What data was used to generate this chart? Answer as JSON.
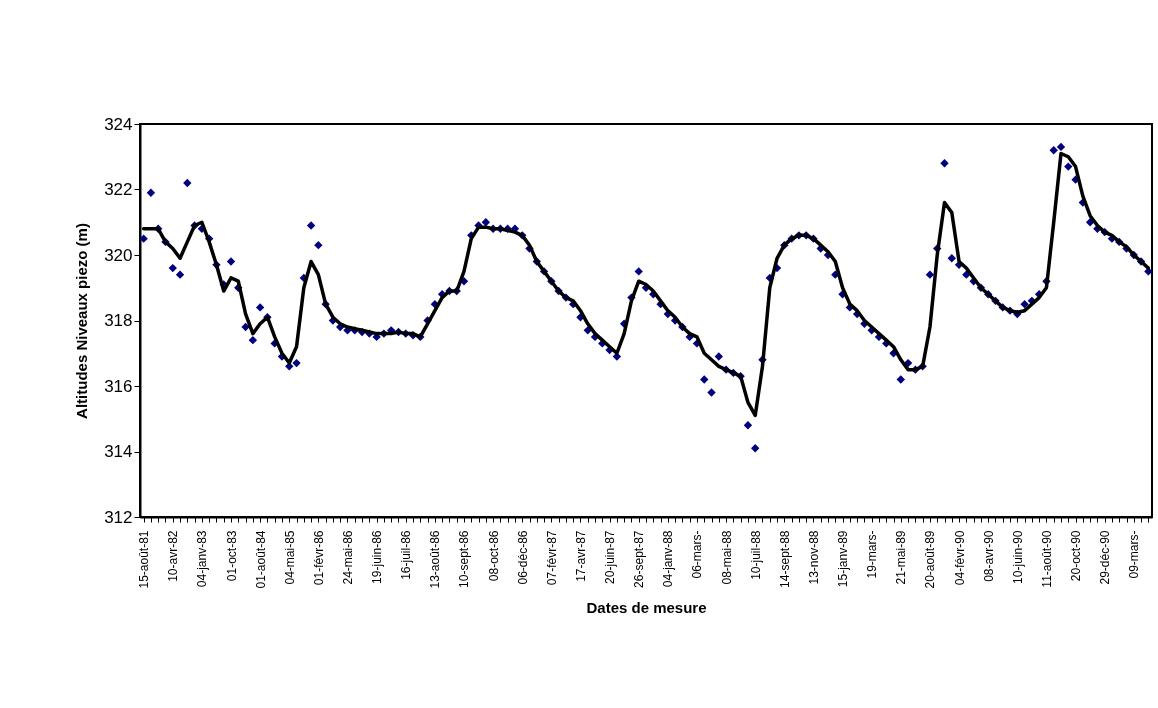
{
  "chart_data": {
    "type": "line",
    "xlabel": "Dates de mesure",
    "ylabel": "Altitudes Niveaux piezo (m)",
    "ylim": [
      312,
      324
    ],
    "yticks": [
      312,
      314,
      316,
      318,
      320,
      322,
      324
    ],
    "categories": [
      "15-août-81",
      null,
      null,
      null,
      "10-avr-82",
      null,
      null,
      null,
      "04-janv-83",
      null,
      null,
      null,
      "01-oct-83",
      null,
      null,
      null,
      "01-août-84",
      null,
      null,
      null,
      "04-mai-85",
      null,
      null,
      null,
      "01-févr-86",
      null,
      null,
      null,
      "24-mai-86",
      null,
      null,
      null,
      "19-juin-86",
      null,
      null,
      null,
      "16-juil-86",
      null,
      null,
      null,
      "13-août-86",
      null,
      null,
      null,
      "10-sept-86",
      null,
      null,
      null,
      "08-oct-86",
      null,
      null,
      null,
      "06-déc-86",
      null,
      null,
      null,
      "07-févr-87",
      null,
      null,
      null,
      "17-avr-87",
      null,
      null,
      null,
      "20-juin-87",
      null,
      null,
      null,
      "26-sept-87",
      null,
      null,
      null,
      "04-janv-88",
      null,
      null,
      null,
      "06-mars-",
      null,
      null,
      null,
      "08-mai-88",
      null,
      null,
      null,
      "10-juil-88",
      null,
      null,
      null,
      "14-sept-88",
      null,
      null,
      null,
      "13-nov-88",
      null,
      null,
      null,
      "15-janv-89",
      null,
      null,
      null,
      "19-mars-",
      null,
      null,
      null,
      "21-mai-89",
      null,
      null,
      null,
      "20-août-89",
      null,
      null,
      null,
      "04-févr-90",
      null,
      null,
      null,
      "08-avr-90",
      null,
      null,
      null,
      "10-juin-90",
      null,
      null,
      null,
      "11-août-90",
      null,
      null,
      null,
      "20-oct-90",
      null,
      null,
      null,
      "29-déc-90",
      null,
      null,
      null,
      "09-mars-",
      null,
      null
    ],
    "series": [
      {
        "type": "scatter",
        "marker": "diamond",
        "color": "#000080",
        "values": [
          320.5,
          321.9,
          320.8,
          320.4,
          319.6,
          319.4,
          322.2,
          320.9,
          320.8,
          320.5,
          319.7,
          319.1,
          319.8,
          319.0,
          317.8,
          317.4,
          318.4,
          318.1,
          317.3,
          316.9,
          316.6,
          316.7,
          319.3,
          320.9,
          320.3,
          318.5,
          318.0,
          317.8,
          317.7,
          317.7,
          317.65,
          317.6,
          317.5,
          317.6,
          317.7,
          317.65,
          317.6,
          317.55,
          317.5,
          318.0,
          318.5,
          318.8,
          318.9,
          318.9,
          319.2,
          320.6,
          320.9,
          321.0,
          320.8,
          320.8,
          320.8,
          320.8,
          320.6,
          320.2,
          319.8,
          319.5,
          319.2,
          318.9,
          318.7,
          318.5,
          318.1,
          317.7,
          317.5,
          317.3,
          317.1,
          316.9,
          317.9,
          318.7,
          319.5,
          319.0,
          318.8,
          318.5,
          318.2,
          318.0,
          317.8,
          317.5,
          317.3,
          316.2,
          315.8,
          316.9,
          316.5,
          316.4,
          316.3,
          314.8,
          314.1,
          316.8,
          319.3,
          319.6,
          320.3,
          320.5,
          320.6,
          320.6,
          320.5,
          320.2,
          320.0,
          319.4,
          318.8,
          318.4,
          318.2,
          317.9,
          317.7,
          317.5,
          317.3,
          317.0,
          316.2,
          316.7,
          316.5,
          316.6,
          319.4,
          320.2,
          322.8,
          319.9,
          319.7,
          319.4,
          319.2,
          319.0,
          318.8,
          318.6,
          318.4,
          318.3,
          318.2,
          318.5,
          318.6,
          318.8,
          319.2,
          323.2,
          323.3,
          322.7,
          322.3,
          321.6,
          321.0,
          320.8,
          320.7,
          320.5,
          320.4,
          320.2,
          320.0,
          319.8,
          319.5
        ]
      },
      {
        "color": "#000000",
        "values": [
          320.8,
          320.8,
          320.8,
          320.4,
          320.2,
          319.9,
          320.4,
          320.9,
          321.0,
          320.4,
          319.7,
          318.9,
          319.3,
          319.2,
          318.2,
          317.6,
          317.9,
          318.1,
          317.5,
          317.0,
          316.7,
          317.2,
          319.0,
          319.8,
          319.4,
          318.5,
          318.1,
          317.9,
          317.8,
          317.75,
          317.7,
          317.65,
          317.6,
          317.6,
          317.6,
          317.65,
          317.6,
          317.6,
          317.5,
          317.9,
          318.3,
          318.7,
          318.9,
          318.9,
          319.5,
          320.5,
          320.85,
          320.85,
          320.8,
          320.8,
          320.75,
          320.7,
          320.6,
          320.3,
          319.8,
          319.5,
          319.2,
          318.9,
          318.7,
          318.6,
          318.3,
          317.9,
          317.6,
          317.4,
          317.2,
          317.0,
          317.6,
          318.6,
          319.2,
          319.1,
          318.9,
          318.6,
          318.3,
          318.1,
          317.8,
          317.6,
          317.5,
          317.0,
          316.8,
          316.6,
          316.5,
          316.4,
          316.3,
          315.5,
          315.1,
          316.6,
          319.0,
          319.9,
          320.3,
          320.5,
          320.6,
          320.6,
          320.5,
          320.3,
          320.1,
          319.8,
          319.0,
          318.5,
          318.3,
          318.0,
          317.8,
          317.6,
          317.4,
          317.2,
          316.8,
          316.5,
          316.5,
          316.6,
          317.8,
          320.0,
          321.6,
          321.3,
          319.8,
          319.6,
          319.3,
          319.0,
          318.8,
          318.6,
          318.4,
          318.3,
          318.25,
          318.3,
          318.5,
          318.7,
          319.0,
          321.0,
          323.1,
          323.0,
          322.7,
          321.8,
          321.2,
          320.9,
          320.7,
          320.6,
          320.4,
          320.25,
          320.0,
          319.8,
          319.6
        ]
      }
    ]
  }
}
